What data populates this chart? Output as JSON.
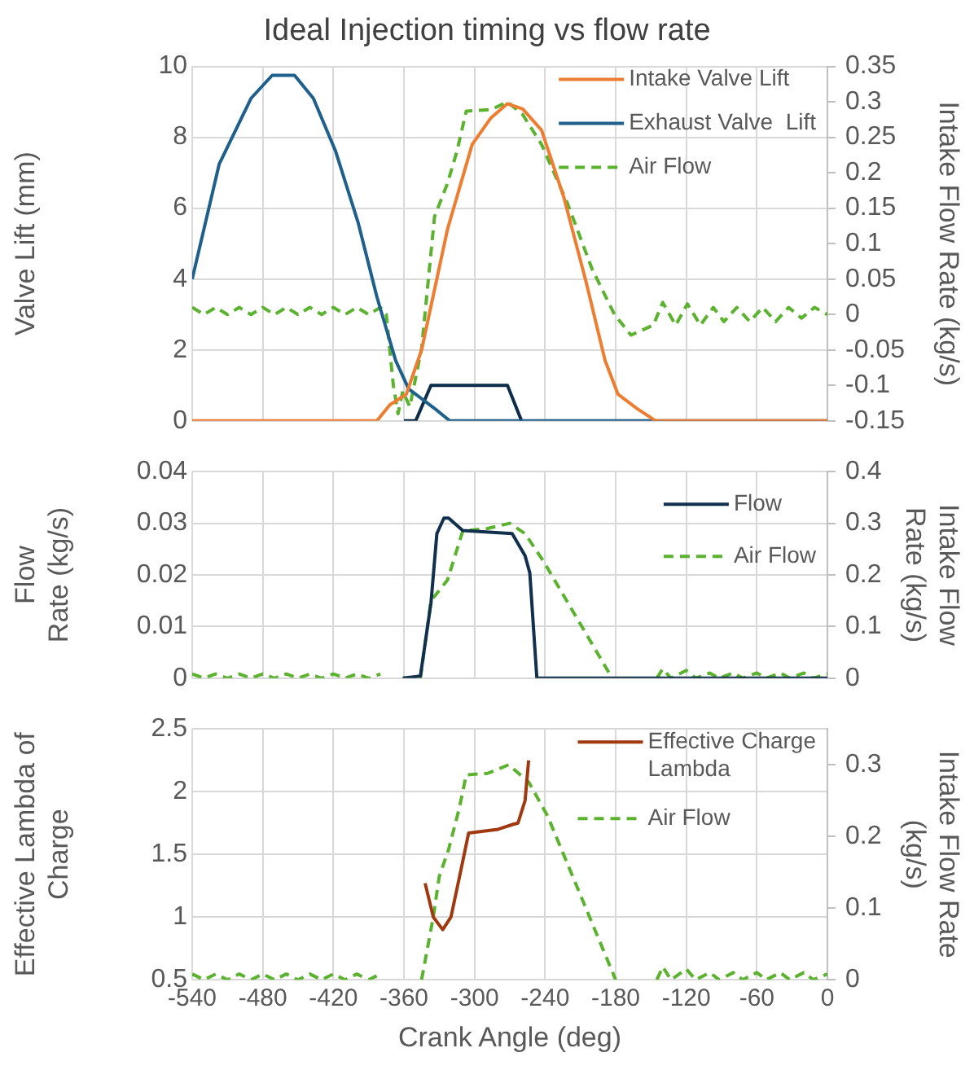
{
  "chart_data": [
    {
      "type": "line",
      "title": "Ideal Injection timing vs flow rate",
      "ylabel": "Valve Lift (mm)",
      "y2label": "Intake Flow Rate (kg/s)",
      "xlim": [
        -540,
        0
      ],
      "xticks": [
        -540,
        -480,
        -420,
        -360,
        -300,
        -240,
        -180,
        -120,
        -60,
        0
      ],
      "ylim": [
        0,
        10
      ],
      "yticks": [
        0,
        2,
        4,
        6,
        8,
        10
      ],
      "y2lim": [
        -0.15,
        0.35
      ],
      "y2ticks": [
        -0.15,
        -0.1,
        -0.05,
        0,
        0.05,
        0.1,
        0.15,
        0.2,
        0.25,
        0.3,
        0.35
      ],
      "grid": true,
      "legend": "top right",
      "tick_labels": "y",
      "series": [
        {
          "name": "Intake Valve Lift",
          "color": "#ed7d31",
          "line_style": "solid",
          "x": [
            -540,
            -383,
            -372,
            -358,
            -345,
            -323,
            -302,
            -286,
            -272,
            -259,
            -243,
            -224,
            -205,
            -189,
            -178,
            -162,
            -146,
            0
          ],
          "values": [
            0,
            0,
            0.45,
            0.75,
            2.0,
            5.4,
            7.8,
            8.55,
            8.95,
            8.8,
            8.2,
            6.3,
            3.9,
            1.7,
            0.75,
            0.35,
            0,
            0
          ]
        },
        {
          "name": "Exhaust Valve  Lift",
          "color": "#1f5f8b",
          "line_style": "solid",
          "x": [
            -540,
            -517,
            -490,
            -472,
            -453,
            -437,
            -418,
            -399,
            -383,
            -367,
            -356,
            -334,
            -321,
            0
          ],
          "values": [
            4.0,
            7.25,
            9.1,
            9.75,
            9.75,
            9.1,
            7.6,
            5.6,
            3.5,
            1.7,
            0.9,
            0.35,
            0,
            0
          ]
        },
        {
          "color": "#0d2c4a",
          "line_style": "solid",
          "x": [
            -360,
            -350,
            -337,
            -272,
            -260
          ],
          "values": [
            0,
            0,
            1.0,
            1.0,
            0
          ]
        },
        {
          "name": "Air Flow",
          "color": "#5ab22f",
          "line_style": "dashed",
          "axis": "y2",
          "x": [
            -540,
            -530,
            -520,
            -510,
            -500,
            -490,
            -480,
            -470,
            -460,
            -450,
            -440,
            -430,
            -420,
            -410,
            -400,
            -390,
            -380,
            -375,
            -369,
            -365,
            -361,
            -355,
            -345,
            -334,
            -323,
            -315,
            -307,
            -286,
            -272,
            -259,
            -243,
            -221,
            -200,
            -181,
            -167,
            -148,
            -140,
            -129,
            -119,
            -108,
            -97,
            -88,
            -77,
            -66,
            -55,
            -44,
            -33,
            -22,
            -11,
            0
          ],
          "values": [
            0.01,
            0,
            0.01,
            0,
            0.01,
            0,
            0.01,
            0,
            0.01,
            0,
            0.01,
            0,
            0.01,
            0,
            0.01,
            0,
            0.01,
            0,
            -0.1,
            -0.14,
            -0.108,
            -0.13,
            -0.048,
            0.138,
            0.185,
            0.23,
            0.287,
            0.289,
            0.3,
            0.282,
            0.24,
            0.157,
            0.064,
            0,
            -0.029,
            -0.015,
            0.017,
            -0.015,
            0.015,
            -0.015,
            0.01,
            -0.01,
            0.01,
            -0.01,
            0.01,
            -0.01,
            0.01,
            -0.005,
            0.01,
            0
          ]
        }
      ]
    },
    {
      "type": "line",
      "ylabel": "Flow\nRate (kg/s)",
      "y2label": "Intake Flow\nRate (kg/s)",
      "xlim": [
        -540,
        0
      ],
      "xticks": [
        -540,
        -480,
        -420,
        -360,
        -300,
        -240,
        -180,
        -120,
        -60,
        0
      ],
      "ylim": [
        0,
        0.04
      ],
      "yticks": [
        0,
        0.01,
        0.02,
        0.03,
        0.04
      ],
      "y2lim": [
        0,
        0.4
      ],
      "y2ticks": [
        0,
        0.1,
        0.2,
        0.3,
        0.4
      ],
      "grid": true,
      "legend": "top right",
      "tick_labels": "y",
      "series": [
        {
          "name": "Flow",
          "color": "#10304d",
          "line_style": "solid",
          "x": [
            -361,
            -346,
            -337,
            -332,
            -326,
            -322,
            -310,
            -268,
            -257,
            -253,
            -247,
            0
          ],
          "values": [
            0,
            0.0004,
            0.0146,
            0.028,
            0.031,
            0.031,
            0.0286,
            0.028,
            0.0237,
            0.0204,
            0,
            0
          ]
        },
        {
          "name": "Air Flow",
          "color": "#5ab22f",
          "line_style": "dashed",
          "axis": "y2",
          "x": [
            -540,
            -530,
            -520,
            -510,
            -500,
            -490,
            -480,
            -470,
            -460,
            -450,
            -440,
            -430,
            -420,
            -410,
            -400,
            -390,
            -380,
            -370,
            -346,
            -337,
            -323,
            -310,
            -289,
            -270,
            -257,
            -241,
            -183,
            -170,
            -145,
            -140,
            -133,
            -120,
            -112,
            -100,
            -92,
            -80,
            -72,
            -60,
            -52,
            -40,
            -32,
            -20,
            -12,
            0
          ],
          "values": [
            0.008,
            0,
            0.008,
            0,
            0.008,
            0,
            0.008,
            0,
            0.008,
            0,
            0.008,
            0,
            0.008,
            0,
            0.008,
            0,
            0.008,
            null,
            0,
            0.15,
            0.19,
            0.285,
            0.29,
            0.3,
            0.28,
            0.225,
            0,
            null,
            0,
            0.018,
            0,
            0.015,
            0,
            0.01,
            0,
            0.01,
            0,
            0.01,
            0,
            0.01,
            0,
            0.01,
            0,
            0.008
          ]
        }
      ]
    },
    {
      "type": "line",
      "xlabel": "Crank Angle (deg)",
      "ylabel": "Effective Lambda of\nCharge",
      "y2label": "Intake Flow Rate\n(kg/s)",
      "xlim": [
        -540,
        0
      ],
      "xticks": [
        -540,
        -480,
        -420,
        -360,
        -300,
        -240,
        -180,
        -120,
        -60,
        0
      ],
      "ylim": [
        0.5,
        2.5
      ],
      "yticks": [
        0.5,
        1,
        1.5,
        2,
        2.5
      ],
      "y2lim": [
        0,
        0.35
      ],
      "y2ticks": [
        0,
        0.1,
        0.2,
        0.3
      ],
      "grid": true,
      "legend": "top right",
      "series": [
        {
          "name": "Effective Charge\nLambda",
          "color": "#a0390f",
          "line_style": "solid",
          "x": [
            -342,
            -335,
            -327,
            -320,
            -311,
            -305,
            -280,
            -267,
            -263,
            -257,
            -254
          ],
          "values": [
            1.27,
            1.0,
            0.9,
            1.0,
            1.4,
            1.67,
            1.7,
            1.74,
            1.75,
            1.93,
            2.25
          ]
        },
        {
          "name": "Air Flow",
          "color": "#5ab22f",
          "line_style": "dashed",
          "axis": "y2",
          "x": [
            -540,
            -530,
            -520,
            -510,
            -500,
            -490,
            -480,
            -470,
            -460,
            -450,
            -440,
            -430,
            -420,
            -410,
            -400,
            -390,
            -380,
            -370,
            -345,
            -335,
            -330,
            -322,
            -313,
            -307,
            -289,
            -271,
            -254,
            -238,
            -180,
            -170,
            -145,
            -140,
            -133,
            -120,
            -112,
            -100,
            -92,
            -80,
            -72,
            -60,
            -52,
            -40,
            -32,
            -20,
            -12,
            0
          ],
          "values": [
            0.008,
            0,
            0.008,
            0,
            0.008,
            0,
            0.008,
            0,
            0.008,
            0,
            0.008,
            0,
            0.008,
            0,
            0.008,
            0,
            0.008,
            null,
            0,
            0.088,
            0.144,
            0.182,
            0.239,
            0.286,
            0.288,
            0.3,
            0.276,
            0.229,
            0,
            null,
            0,
            0.018,
            0,
            0.015,
            0,
            0.01,
            0,
            0.01,
            0,
            0.01,
            0,
            0.01,
            0,
            0.01,
            0,
            0.008
          ]
        }
      ]
    }
  ]
}
